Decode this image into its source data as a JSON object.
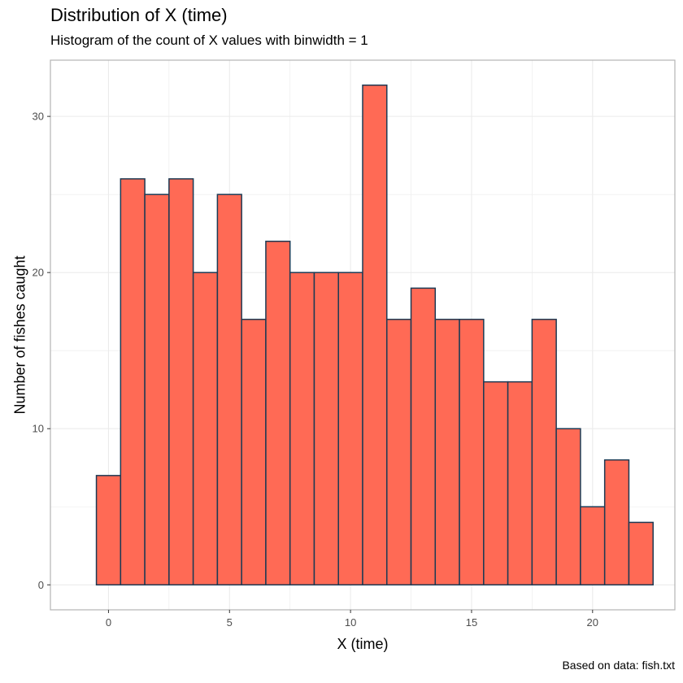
{
  "chart_data": {
    "type": "bar",
    "title": "Distribution of X (time)",
    "subtitle": "Histogram of the count of X values with binwidth = 1",
    "caption": "Based on data: fish.txt",
    "xlabel": "X (time)",
    "ylabel": "Number of fishes caught",
    "binwidth": 1,
    "x": [
      0,
      1,
      2,
      3,
      4,
      5,
      6,
      7,
      8,
      9,
      10,
      11,
      12,
      13,
      14,
      15,
      16,
      17,
      18,
      19,
      20,
      21,
      22
    ],
    "values": [
      7,
      26,
      25,
      26,
      20,
      25,
      17,
      22,
      20,
      20,
      20,
      32,
      17,
      19,
      17,
      17,
      13,
      13,
      17,
      10,
      5,
      8,
      4
    ],
    "xlim": [
      -2.4,
      23.4
    ],
    "ylim": [
      -1.6,
      33.6
    ],
    "xticks": [
      0,
      5,
      10,
      15,
      20
    ],
    "yticks": [
      0,
      10,
      20,
      30
    ],
    "grid": true,
    "colors": {
      "fill": "#FF6A55",
      "outline": "#1C3A54",
      "grid": "#EBEBEB",
      "panel_border": "#B3B3B3"
    }
  }
}
